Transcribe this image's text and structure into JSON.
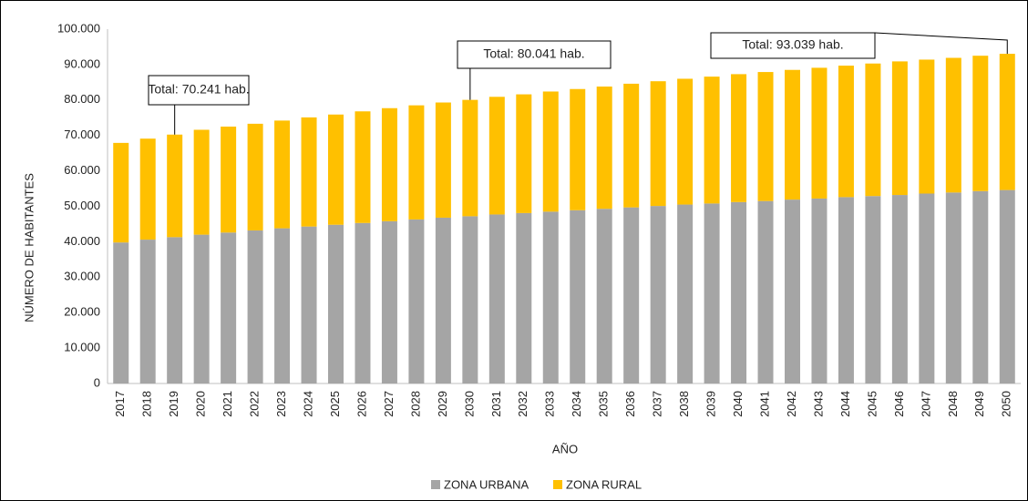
{
  "chart_data": {
    "type": "stacked_bar",
    "x_label": "AÑO",
    "y_label": "NÚMERO DE HABITANTES",
    "categories": [
      "2017",
      "2018",
      "2019",
      "2020",
      "2021",
      "2022",
      "2023",
      "2024",
      "2025",
      "2026",
      "2027",
      "2028",
      "2029",
      "2030",
      "2031",
      "2032",
      "2033",
      "2034",
      "2035",
      "2036",
      "2037",
      "2038",
      "2039",
      "2040",
      "2041",
      "2042",
      "2043",
      "2044",
      "2045",
      "2046",
      "2047",
      "2048",
      "2049",
      "2050"
    ],
    "series": [
      {
        "name": "ZONA URBANA",
        "color": "#a5a5a5",
        "values": [
          39800,
          40600,
          41300,
          42000,
          42600,
          43200,
          43800,
          44300,
          44800,
          45300,
          45800,
          46300,
          46800,
          47200,
          47700,
          48100,
          48500,
          48900,
          49300,
          49700,
          50100,
          50500,
          50800,
          51200,
          51500,
          51900,
          52200,
          52600,
          52900,
          53200,
          53600,
          53900,
          54300,
          54600
        ]
      },
      {
        "name": "ZONA RURAL",
        "color": "#ffc000",
        "values": [
          28100,
          28500,
          28941,
          29600,
          29900,
          30100,
          30400,
          30800,
          31100,
          31500,
          31900,
          32200,
          32500,
          32841,
          33200,
          33500,
          33900,
          34200,
          34500,
          34900,
          35200,
          35500,
          35800,
          36100,
          36400,
          36600,
          36900,
          37100,
          37400,
          37700,
          37800,
          38000,
          38200,
          38439
        ]
      }
    ],
    "annotations": [
      {
        "text": "Total: 70.241 hab.",
        "x": "2019"
      },
      {
        "text": "Total: 80.041 hab.",
        "x": "2030"
      },
      {
        "text": "Total: 93.039 hab.",
        "x": "2050"
      }
    ],
    "ylim": [
      0,
      100000
    ],
    "yticks": [
      0,
      {
        "value": 10000,
        "label": "10.000"
      },
      {
        "value": 20000,
        "label": "20.000"
      },
      {
        "value": 30000,
        "label": "30.000"
      },
      {
        "value": 40000,
        "label": "40.000"
      },
      {
        "value": 50000,
        "label": "50.000"
      },
      {
        "value": 60000,
        "label": "60.000"
      },
      {
        "value": 70000,
        "label": "70.000"
      },
      {
        "value": 80000,
        "label": "80.000"
      },
      {
        "value": 90000,
        "label": "90.000"
      },
      {
        "value": 100000,
        "label": "100.000"
      }
    ],
    "grid": false,
    "legend": "bottom"
  }
}
